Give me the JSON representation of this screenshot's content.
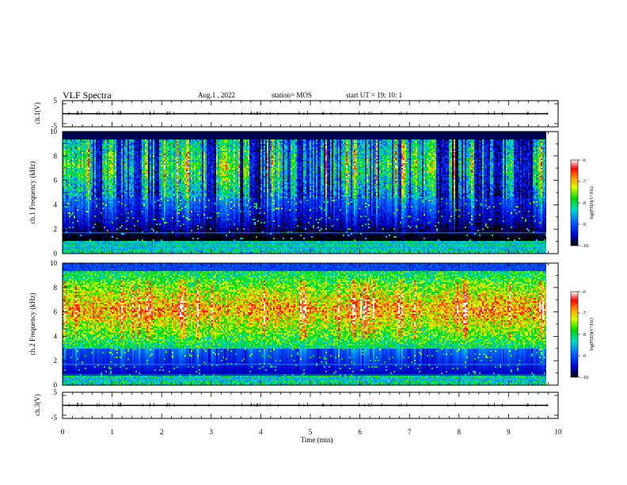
{
  "header": {
    "title": "VLF Spectra",
    "date": "Aug.1 , 2022",
    "station": "station= MOS",
    "start_ut": "start UT = 19: 10: 1"
  },
  "chart_data": {
    "type": "heatmap",
    "panels": [
      {
        "id": "ch1_waveform",
        "type": "line",
        "ylabel": "ch.1(V)",
        "ylim": [
          -5,
          5
        ],
        "yticks": [
          "5",
          "-5"
        ],
        "series_level": 0
      },
      {
        "id": "ch1_spectrogram",
        "type": "heatmap",
        "ylabel": "ch.1 Frequency (kHz)",
        "ylim": [
          0,
          10
        ],
        "yticks": [
          "0",
          "2",
          "4",
          "6",
          "8",
          "10"
        ],
        "colorbar": {
          "label": "log(PSD)(V²/Hz)",
          "range": [
            -10,
            -6
          ],
          "ticks": [
            "-6",
            "-7",
            "-8",
            "-9",
            "-10"
          ]
        }
      },
      {
        "id": "ch2_spectrogram",
        "type": "heatmap",
        "ylabel": "ch.2 Frequency (kHz)",
        "ylim": [
          0,
          10
        ],
        "yticks": [
          "0",
          "2",
          "4",
          "6",
          "8",
          "10"
        ],
        "colorbar": {
          "label": "log(PSD)(V²/Hz)",
          "range": [
            -10,
            -6
          ],
          "ticks": [
            "-6",
            "-7",
            "-8",
            "-9",
            "-10"
          ]
        }
      },
      {
        "id": "ch3_waveform",
        "type": "line",
        "ylabel": "ch.3(V)",
        "ylim": [
          -5,
          5
        ],
        "yticks": [
          "5",
          "-5"
        ],
        "series_level": 0
      }
    ],
    "x": {
      "label": "Time (min)",
      "range": [
        0,
        10
      ],
      "ticks": [
        "0",
        "1",
        "2",
        "3",
        "4",
        "5",
        "6",
        "7",
        "8",
        "9",
        "10"
      ],
      "data_end": 9.8
    }
  }
}
